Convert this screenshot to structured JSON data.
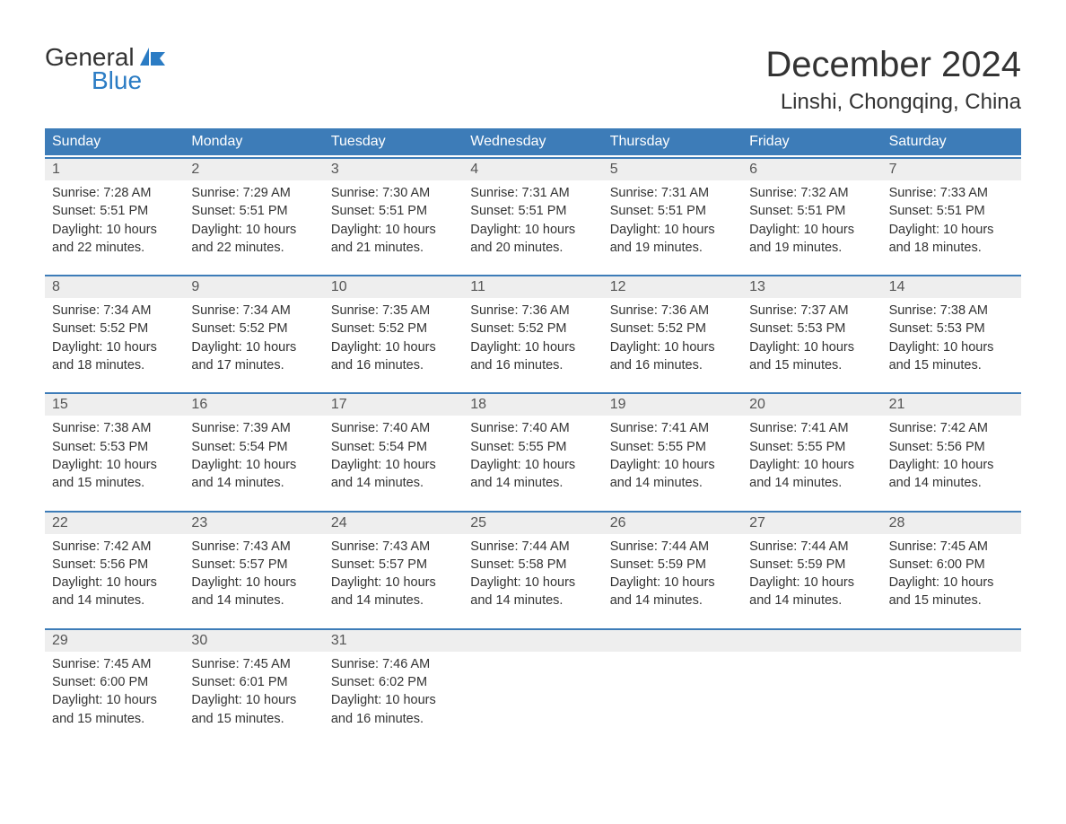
{
  "logo": {
    "top": "General",
    "bottom": "Blue",
    "flag_color": "#2b7cc4"
  },
  "title": "December 2024",
  "location": "Linshi, Chongqing, China",
  "day_headers": [
    "Sunday",
    "Monday",
    "Tuesday",
    "Wednesday",
    "Thursday",
    "Friday",
    "Saturday"
  ],
  "colors": {
    "header_bg": "#3d7cb8",
    "header_text": "#ffffff",
    "week_border": "#3d7cb8",
    "day_num_bg": "#eeeeee",
    "text": "#333333",
    "logo_blue": "#2b7cc4"
  },
  "weeks": [
    [
      {
        "day": "1",
        "sunrise": "Sunrise: 7:28 AM",
        "sunset": "Sunset: 5:51 PM",
        "daylight1": "Daylight: 10 hours",
        "daylight2": "and 22 minutes."
      },
      {
        "day": "2",
        "sunrise": "Sunrise: 7:29 AM",
        "sunset": "Sunset: 5:51 PM",
        "daylight1": "Daylight: 10 hours",
        "daylight2": "and 22 minutes."
      },
      {
        "day": "3",
        "sunrise": "Sunrise: 7:30 AM",
        "sunset": "Sunset: 5:51 PM",
        "daylight1": "Daylight: 10 hours",
        "daylight2": "and 21 minutes."
      },
      {
        "day": "4",
        "sunrise": "Sunrise: 7:31 AM",
        "sunset": "Sunset: 5:51 PM",
        "daylight1": "Daylight: 10 hours",
        "daylight2": "and 20 minutes."
      },
      {
        "day": "5",
        "sunrise": "Sunrise: 7:31 AM",
        "sunset": "Sunset: 5:51 PM",
        "daylight1": "Daylight: 10 hours",
        "daylight2": "and 19 minutes."
      },
      {
        "day": "6",
        "sunrise": "Sunrise: 7:32 AM",
        "sunset": "Sunset: 5:51 PM",
        "daylight1": "Daylight: 10 hours",
        "daylight2": "and 19 minutes."
      },
      {
        "day": "7",
        "sunrise": "Sunrise: 7:33 AM",
        "sunset": "Sunset: 5:51 PM",
        "daylight1": "Daylight: 10 hours",
        "daylight2": "and 18 minutes."
      }
    ],
    [
      {
        "day": "8",
        "sunrise": "Sunrise: 7:34 AM",
        "sunset": "Sunset: 5:52 PM",
        "daylight1": "Daylight: 10 hours",
        "daylight2": "and 18 minutes."
      },
      {
        "day": "9",
        "sunrise": "Sunrise: 7:34 AM",
        "sunset": "Sunset: 5:52 PM",
        "daylight1": "Daylight: 10 hours",
        "daylight2": "and 17 minutes."
      },
      {
        "day": "10",
        "sunrise": "Sunrise: 7:35 AM",
        "sunset": "Sunset: 5:52 PM",
        "daylight1": "Daylight: 10 hours",
        "daylight2": "and 16 minutes."
      },
      {
        "day": "11",
        "sunrise": "Sunrise: 7:36 AM",
        "sunset": "Sunset: 5:52 PM",
        "daylight1": "Daylight: 10 hours",
        "daylight2": "and 16 minutes."
      },
      {
        "day": "12",
        "sunrise": "Sunrise: 7:36 AM",
        "sunset": "Sunset: 5:52 PM",
        "daylight1": "Daylight: 10 hours",
        "daylight2": "and 16 minutes."
      },
      {
        "day": "13",
        "sunrise": "Sunrise: 7:37 AM",
        "sunset": "Sunset: 5:53 PM",
        "daylight1": "Daylight: 10 hours",
        "daylight2": "and 15 minutes."
      },
      {
        "day": "14",
        "sunrise": "Sunrise: 7:38 AM",
        "sunset": "Sunset: 5:53 PM",
        "daylight1": "Daylight: 10 hours",
        "daylight2": "and 15 minutes."
      }
    ],
    [
      {
        "day": "15",
        "sunrise": "Sunrise: 7:38 AM",
        "sunset": "Sunset: 5:53 PM",
        "daylight1": "Daylight: 10 hours",
        "daylight2": "and 15 minutes."
      },
      {
        "day": "16",
        "sunrise": "Sunrise: 7:39 AM",
        "sunset": "Sunset: 5:54 PM",
        "daylight1": "Daylight: 10 hours",
        "daylight2": "and 14 minutes."
      },
      {
        "day": "17",
        "sunrise": "Sunrise: 7:40 AM",
        "sunset": "Sunset: 5:54 PM",
        "daylight1": "Daylight: 10 hours",
        "daylight2": "and 14 minutes."
      },
      {
        "day": "18",
        "sunrise": "Sunrise: 7:40 AM",
        "sunset": "Sunset: 5:55 PM",
        "daylight1": "Daylight: 10 hours",
        "daylight2": "and 14 minutes."
      },
      {
        "day": "19",
        "sunrise": "Sunrise: 7:41 AM",
        "sunset": "Sunset: 5:55 PM",
        "daylight1": "Daylight: 10 hours",
        "daylight2": "and 14 minutes."
      },
      {
        "day": "20",
        "sunrise": "Sunrise: 7:41 AM",
        "sunset": "Sunset: 5:55 PM",
        "daylight1": "Daylight: 10 hours",
        "daylight2": "and 14 minutes."
      },
      {
        "day": "21",
        "sunrise": "Sunrise: 7:42 AM",
        "sunset": "Sunset: 5:56 PM",
        "daylight1": "Daylight: 10 hours",
        "daylight2": "and 14 minutes."
      }
    ],
    [
      {
        "day": "22",
        "sunrise": "Sunrise: 7:42 AM",
        "sunset": "Sunset: 5:56 PM",
        "daylight1": "Daylight: 10 hours",
        "daylight2": "and 14 minutes."
      },
      {
        "day": "23",
        "sunrise": "Sunrise: 7:43 AM",
        "sunset": "Sunset: 5:57 PM",
        "daylight1": "Daylight: 10 hours",
        "daylight2": "and 14 minutes."
      },
      {
        "day": "24",
        "sunrise": "Sunrise: 7:43 AM",
        "sunset": "Sunset: 5:57 PM",
        "daylight1": "Daylight: 10 hours",
        "daylight2": "and 14 minutes."
      },
      {
        "day": "25",
        "sunrise": "Sunrise: 7:44 AM",
        "sunset": "Sunset: 5:58 PM",
        "daylight1": "Daylight: 10 hours",
        "daylight2": "and 14 minutes."
      },
      {
        "day": "26",
        "sunrise": "Sunrise: 7:44 AM",
        "sunset": "Sunset: 5:59 PM",
        "daylight1": "Daylight: 10 hours",
        "daylight2": "and 14 minutes."
      },
      {
        "day": "27",
        "sunrise": "Sunrise: 7:44 AM",
        "sunset": "Sunset: 5:59 PM",
        "daylight1": "Daylight: 10 hours",
        "daylight2": "and 14 minutes."
      },
      {
        "day": "28",
        "sunrise": "Sunrise: 7:45 AM",
        "sunset": "Sunset: 6:00 PM",
        "daylight1": "Daylight: 10 hours",
        "daylight2": "and 15 minutes."
      }
    ],
    [
      {
        "day": "29",
        "sunrise": "Sunrise: 7:45 AM",
        "sunset": "Sunset: 6:00 PM",
        "daylight1": "Daylight: 10 hours",
        "daylight2": "and 15 minutes."
      },
      {
        "day": "30",
        "sunrise": "Sunrise: 7:45 AM",
        "sunset": "Sunset: 6:01 PM",
        "daylight1": "Daylight: 10 hours",
        "daylight2": "and 15 minutes."
      },
      {
        "day": "31",
        "sunrise": "Sunrise: 7:46 AM",
        "sunset": "Sunset: 6:02 PM",
        "daylight1": "Daylight: 10 hours",
        "daylight2": "and 16 minutes."
      },
      {
        "empty": true
      },
      {
        "empty": true
      },
      {
        "empty": true
      },
      {
        "empty": true
      }
    ]
  ]
}
